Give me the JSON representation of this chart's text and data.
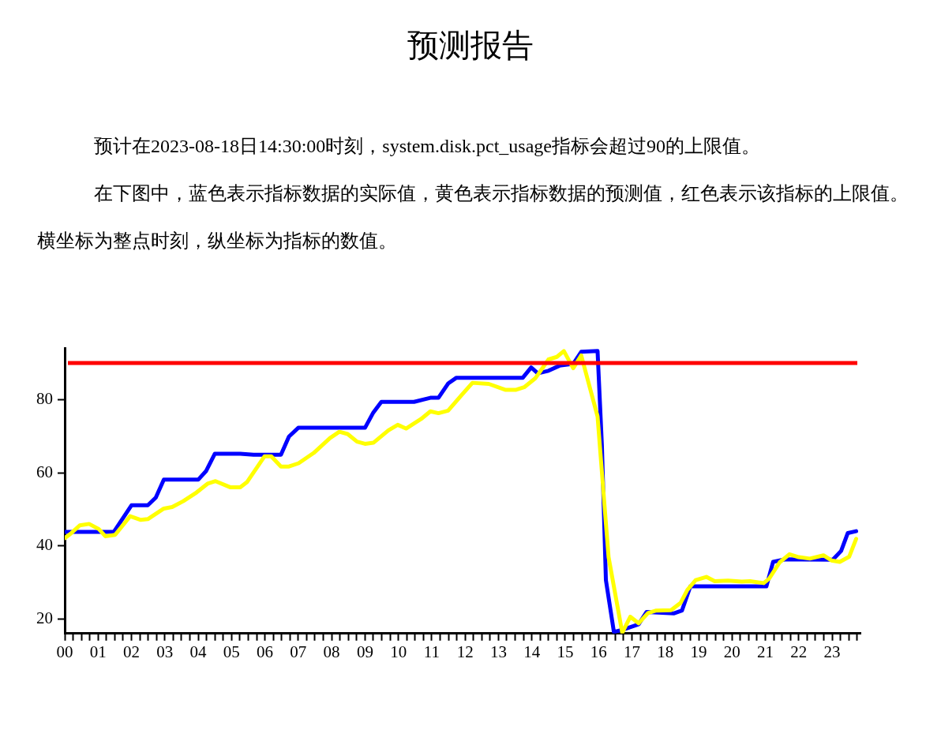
{
  "chart_data": {
    "type": "line",
    "title": "预测报告",
    "annotations": [
      "预计在2023-08-18日14:30:00时刻，system.disk.pct_usage指标会超过90的上限值。",
      "在下图中，蓝色表示指标数据的实际值，黄色表示指标数据的预测值，红色表示该指标的上限值。横坐标为整点时刻，纵坐标为指标的数值。"
    ],
    "series": [
      {
        "color": "#0000ff",
        "x": [
          0,
          1.47,
          2.0,
          2.49,
          2.73,
          2.97,
          4.0,
          4.24,
          4.5,
          5.26,
          5.66,
          6.48,
          6.72,
          7.0,
          9.0,
          9.25,
          9.49,
          10.47,
          10.96,
          11.2,
          11.49,
          11.74,
          13.73,
          13.98,
          14.18,
          14.5,
          14.83,
          15.24,
          15.48,
          15.97,
          16.1,
          16.22,
          16.46,
          16.75,
          17.2,
          17.44,
          18.25,
          18.5,
          18.75,
          21.03,
          21.23,
          21.6,
          23.02,
          23.27,
          23.47,
          23.72
        ],
        "values": [
          43.8,
          43.8,
          51.1,
          51.1,
          53.2,
          58.1,
          58.1,
          60.5,
          65.2,
          65.2,
          64.9,
          64.9,
          69.9,
          72.3,
          72.3,
          76.5,
          79.4,
          79.4,
          80.5,
          80.5,
          84.4,
          86.0,
          86.0,
          88.8,
          87.2,
          87.9,
          89.3,
          89.8,
          93.1,
          93.3,
          67.4,
          30.6,
          16.4,
          17.1,
          18.5,
          21.9,
          21.5,
          22.3,
          28.9,
          28.9,
          35.6,
          36.3,
          36.2,
          38.6,
          43.5,
          44.0
        ]
      },
      {
        "color": "#ffff00",
        "x": [
          0,
          0.2,
          0.45,
          0.73,
          1.02,
          1.22,
          1.51,
          1.96,
          2.28,
          2.49,
          2.97,
          3.22,
          3.55,
          3.95,
          4.28,
          4.52,
          4.97,
          5.26,
          5.46,
          5.99,
          6.19,
          6.48,
          6.72,
          7.01,
          7.46,
          7.95,
          8.23,
          8.48,
          8.76,
          9.0,
          9.25,
          9.7,
          9.98,
          10.23,
          10.68,
          10.96,
          11.2,
          11.49,
          11.9,
          12.22,
          12.71,
          13.2,
          13.53,
          13.77,
          14.1,
          14.5,
          14.75,
          14.96,
          15.24,
          15.48,
          15.97,
          16.18,
          16.3,
          16.71,
          16.95,
          17.2,
          17.48,
          17.73,
          18.17,
          18.46,
          18.66,
          18.91,
          19.23,
          19.48,
          19.88,
          20.29,
          20.54,
          20.95,
          21.11,
          21.43,
          21.72,
          22.0,
          22.33,
          22.74,
          22.98,
          23.23,
          23.51,
          23.72
        ],
        "values": [
          42.1,
          43.5,
          45.6,
          46.0,
          44.6,
          42.6,
          43.0,
          48.1,
          47.1,
          47.3,
          50.2,
          50.6,
          52.2,
          54.6,
          57.0,
          57.7,
          56.0,
          56.0,
          57.4,
          64.5,
          64.5,
          61.7,
          61.7,
          62.6,
          65.4,
          69.5,
          71.2,
          70.6,
          68.5,
          67.9,
          68.2,
          71.6,
          73.1,
          72.1,
          74.7,
          76.8,
          76.3,
          77.0,
          81.3,
          84.6,
          84.3,
          82.7,
          82.7,
          83.4,
          85.8,
          91.0,
          91.7,
          93.3,
          88.6,
          92.1,
          75.4,
          50.8,
          36.9,
          16.2,
          20.6,
          18.8,
          21.6,
          22.3,
          22.4,
          24.4,
          27.9,
          30.6,
          31.5,
          30.3,
          30.5,
          30.2,
          30.3,
          29.8,
          31.0,
          35.5,
          37.7,
          36.9,
          36.5,
          37.4,
          36.0,
          35.6,
          37.0,
          41.9
        ]
      }
    ],
    "ref_lines": [
      {
        "axis": "y",
        "value": 90,
        "color": "#ff0000"
      }
    ],
    "xlim": [
      0,
      23.85
    ],
    "ylim": [
      16,
      94
    ],
    "yticks": [
      20,
      40,
      60,
      80
    ],
    "xticks": [
      {
        "value": 0,
        "label": "00"
      },
      {
        "value": 0.25,
        "label": null
      },
      {
        "value": 0.5,
        "label": null
      },
      {
        "value": 0.75,
        "label": null
      },
      {
        "value": 1,
        "label": "01"
      },
      {
        "value": 1.25,
        "label": null
      },
      {
        "value": 1.5,
        "label": null
      },
      {
        "value": 1.75,
        "label": null
      },
      {
        "value": 2,
        "label": "02"
      },
      {
        "value": 2.25,
        "label": null
      },
      {
        "value": 2.5,
        "label": null
      },
      {
        "value": 2.75,
        "label": null
      },
      {
        "value": 3,
        "label": "03"
      },
      {
        "value": 3.25,
        "label": null
      },
      {
        "value": 3.5,
        "label": null
      },
      {
        "value": 3.75,
        "label": null
      },
      {
        "value": 4,
        "label": "04"
      },
      {
        "value": 4.25,
        "label": null
      },
      {
        "value": 4.5,
        "label": null
      },
      {
        "value": 4.75,
        "label": null
      },
      {
        "value": 5,
        "label": "05"
      },
      {
        "value": 5.25,
        "label": null
      },
      {
        "value": 5.5,
        "label": null
      },
      {
        "value": 5.75,
        "label": null
      },
      {
        "value": 6,
        "label": "06"
      },
      {
        "value": 6.25,
        "label": null
      },
      {
        "value": 6.5,
        "label": null
      },
      {
        "value": 6.75,
        "label": null
      },
      {
        "value": 7,
        "label": "07"
      },
      {
        "value": 7.25,
        "label": null
      },
      {
        "value": 7.5,
        "label": null
      },
      {
        "value": 7.75,
        "label": null
      },
      {
        "value": 8,
        "label": "08"
      },
      {
        "value": 8.25,
        "label": null
      },
      {
        "value": 8.5,
        "label": null
      },
      {
        "value": 8.75,
        "label": null
      },
      {
        "value": 9,
        "label": "09"
      },
      {
        "value": 9.25,
        "label": null
      },
      {
        "value": 9.5,
        "label": null
      },
      {
        "value": 9.75,
        "label": null
      },
      {
        "value": 10,
        "label": "10"
      },
      {
        "value": 10.25,
        "label": null
      },
      {
        "value": 10.5,
        "label": null
      },
      {
        "value": 10.75,
        "label": null
      },
      {
        "value": 11,
        "label": "11"
      },
      {
        "value": 11.25,
        "label": null
      },
      {
        "value": 11.5,
        "label": null
      },
      {
        "value": 11.75,
        "label": null
      },
      {
        "value": 12,
        "label": "12"
      },
      {
        "value": 12.25,
        "label": null
      },
      {
        "value": 12.5,
        "label": null
      },
      {
        "value": 12.75,
        "label": null
      },
      {
        "value": 13,
        "label": "13"
      },
      {
        "value": 13.25,
        "label": null
      },
      {
        "value": 13.5,
        "label": null
      },
      {
        "value": 13.75,
        "label": null
      },
      {
        "value": 14,
        "label": "14"
      },
      {
        "value": 14.25,
        "label": null
      },
      {
        "value": 14.5,
        "label": null
      },
      {
        "value": 14.75,
        "label": null
      },
      {
        "value": 15,
        "label": "15"
      },
      {
        "value": 15.25,
        "label": null
      },
      {
        "value": 15.5,
        "label": null
      },
      {
        "value": 15.75,
        "label": null
      },
      {
        "value": 16,
        "label": "16"
      },
      {
        "value": 16.25,
        "label": null
      },
      {
        "value": 16.5,
        "label": null
      },
      {
        "value": 16.75,
        "label": null
      },
      {
        "value": 17,
        "label": "17"
      },
      {
        "value": 17.25,
        "label": null
      },
      {
        "value": 17.5,
        "label": null
      },
      {
        "value": 17.75,
        "label": null
      },
      {
        "value": 18,
        "label": "18"
      },
      {
        "value": 18.25,
        "label": null
      },
      {
        "value": 18.5,
        "label": null
      },
      {
        "value": 18.75,
        "label": null
      },
      {
        "value": 19,
        "label": "19"
      },
      {
        "value": 19.25,
        "label": null
      },
      {
        "value": 19.5,
        "label": null
      },
      {
        "value": 19.75,
        "label": null
      },
      {
        "value": 20,
        "label": "20"
      },
      {
        "value": 20.25,
        "label": null
      },
      {
        "value": 20.5,
        "label": null
      },
      {
        "value": 20.75,
        "label": null
      },
      {
        "value": 21,
        "label": "21"
      },
      {
        "value": 21.25,
        "label": null
      },
      {
        "value": 21.5,
        "label": null
      },
      {
        "value": 21.75,
        "label": null
      },
      {
        "value": 22,
        "label": "22"
      },
      {
        "value": 22.25,
        "label": null
      },
      {
        "value": 22.5,
        "label": null
      },
      {
        "value": 22.75,
        "label": null
      },
      {
        "value": 23,
        "label": "23"
      },
      {
        "value": 23.25,
        "label": null
      },
      {
        "value": 23.5,
        "label": null
      },
      {
        "value": 23.75,
        "label": null
      }
    ],
    "grid": false,
    "legend": false,
    "marker": "none",
    "line_style": "solid"
  }
}
